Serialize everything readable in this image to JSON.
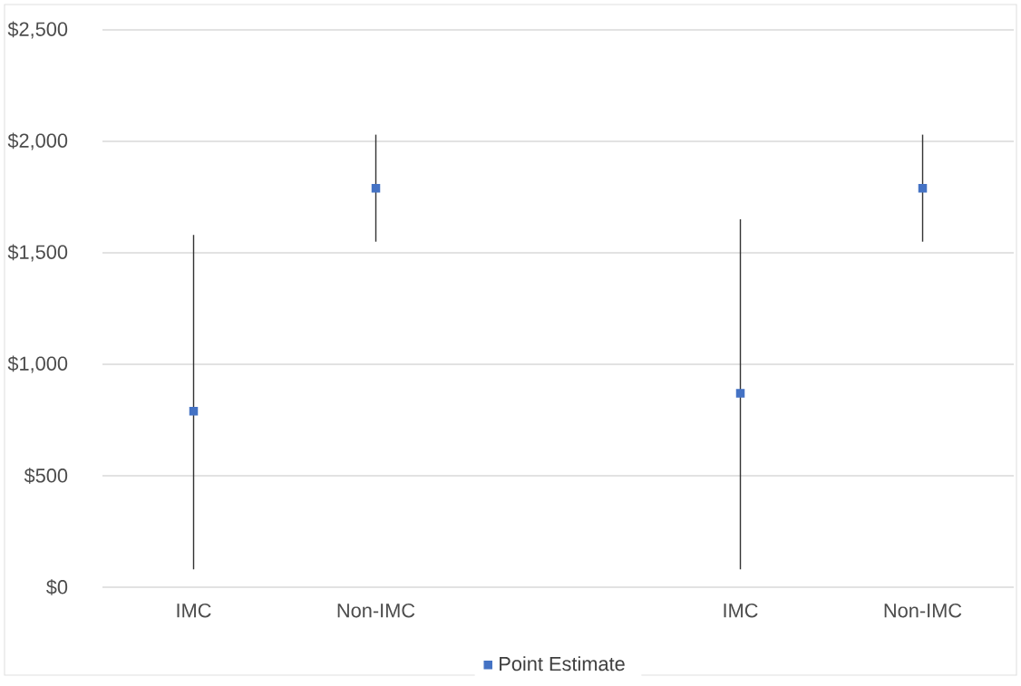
{
  "chart_data": {
    "type": "scatter",
    "categories": [
      "IMC",
      "Non-IMC",
      null,
      "IMC",
      "Non-IMC"
    ],
    "series": [
      {
        "name": "Point Estimate",
        "color": "#4472c4",
        "values": [
          790,
          1790,
          null,
          870,
          1790
        ],
        "errors": [
          [
            80,
            1580
          ],
          [
            1550,
            2030
          ],
          null,
          [
            80,
            1650
          ],
          [
            1550,
            2030
          ]
        ]
      }
    ],
    "ylim": [
      0,
      2500
    ],
    "yticks": [
      {
        "value": 0,
        "label": "$0"
      },
      {
        "value": 500,
        "label": "$500"
      },
      {
        "value": 1000,
        "label": "$1,000"
      },
      {
        "value": 1500,
        "label": "$1,500"
      },
      {
        "value": 2000,
        "label": "$2,000"
      },
      {
        "value": 2500,
        "label": "$2,500"
      }
    ],
    "grid": "y",
    "legend": "bottom",
    "marker": "square"
  }
}
